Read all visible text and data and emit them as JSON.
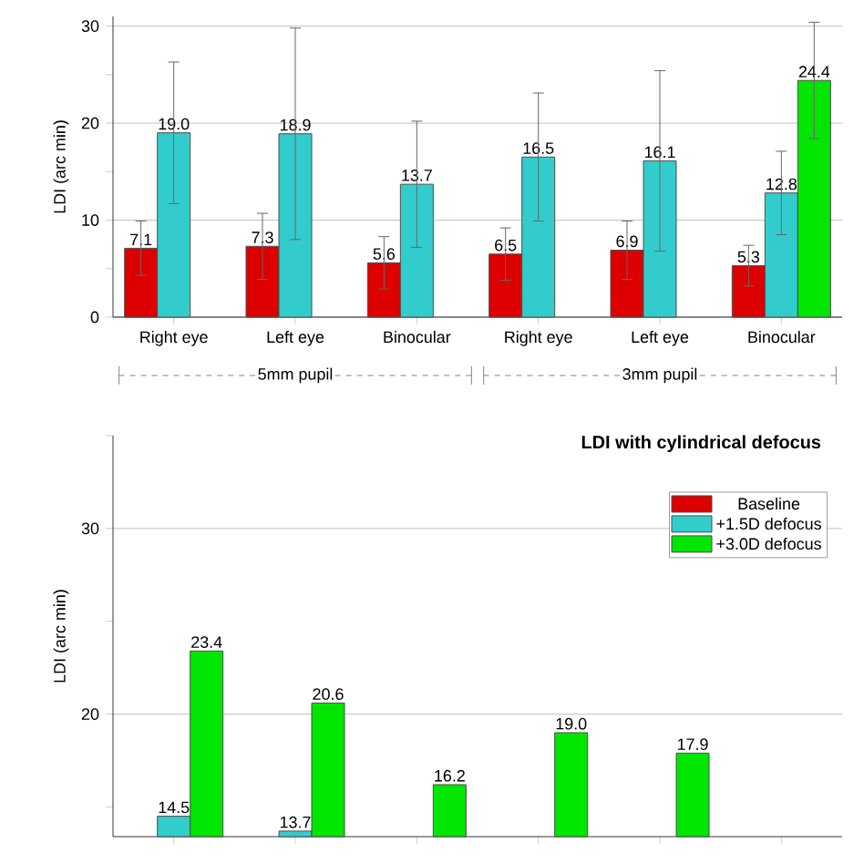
{
  "chart_data": [
    {
      "type": "bar",
      "ylabel": "LDI (arc min)",
      "categories": [
        "Right eye",
        "Left eye",
        "Binocular",
        "Right eye",
        "Left eye",
        "Binocular"
      ],
      "series": [
        {
          "color": "#dd0000",
          "values": [
            7.1,
            7.3,
            5.6,
            6.5,
            6.9,
            5.3
          ],
          "errors": [
            2.8,
            3.4,
            2.7,
            2.7,
            3.0,
            2.1
          ],
          "value_labels": [
            "7.1",
            "7.3",
            "5.6",
            "6.5",
            "6.9",
            "5.3"
          ]
        },
        {
          "color": "#33cccc",
          "values": [
            19.0,
            18.9,
            13.7,
            16.5,
            16.1,
            12.8
          ],
          "errors": [
            7.3,
            10.9,
            6.5,
            6.6,
            9.3,
            4.3
          ],
          "value_labels": [
            "19.0",
            "18.9",
            "13.7",
            "16.5",
            "16.1",
            "12.8"
          ]
        },
        {
          "color": "#00e600",
          "values": [
            null,
            null,
            null,
            null,
            null,
            24.4
          ],
          "errors": [
            null,
            null,
            null,
            null,
            null,
            6.0
          ],
          "value_labels": [
            null,
            null,
            null,
            null,
            null,
            "24.4"
          ]
        }
      ],
      "ylim": [
        0,
        31
      ],
      "yticks": [
        0,
        {
          "value": 5,
          "label": null
        },
        10,
        {
          "value": 15,
          "label": null
        },
        20,
        {
          "value": 25,
          "label": null
        },
        30
      ],
      "grid": "y",
      "annotations": [
        "5mm pupil",
        "3mm pupil"
      ]
    },
    {
      "type": "bar",
      "title": "LDI with cylindrical defocus",
      "ylabel": "LDI (arc min)",
      "categories": [
        null,
        null,
        null,
        null,
        null,
        null
      ],
      "series": [
        {
          "name": "Baseline",
          "color": "#dd0000",
          "values": [
            null,
            null,
            null,
            null,
            null,
            null
          ]
        },
        {
          "name": "+1.5D defocus",
          "color": "#33cccc",
          "values": [
            14.5,
            13.7,
            null,
            null,
            null,
            null
          ],
          "value_labels": [
            "14.5",
            "13.7",
            null,
            null,
            null,
            null
          ]
        },
        {
          "name": "+3.0D defocus",
          "color": "#00e600",
          "values": [
            23.4,
            20.6,
            16.2,
            19.0,
            17.9,
            null
          ],
          "value_labels": [
            "23.4",
            "20.6",
            "16.2",
            "19.0",
            "17.9",
            null
          ]
        }
      ],
      "ylim": [
        13.4,
        35
      ],
      "yticks": [
        {
          "value": 15,
          "label": null
        },
        20,
        {
          "value": 25,
          "label": null
        },
        30,
        {
          "value": 35,
          "label": null
        }
      ],
      "grid": "y",
      "legend": "top right",
      "tick_labels": "y"
    }
  ]
}
